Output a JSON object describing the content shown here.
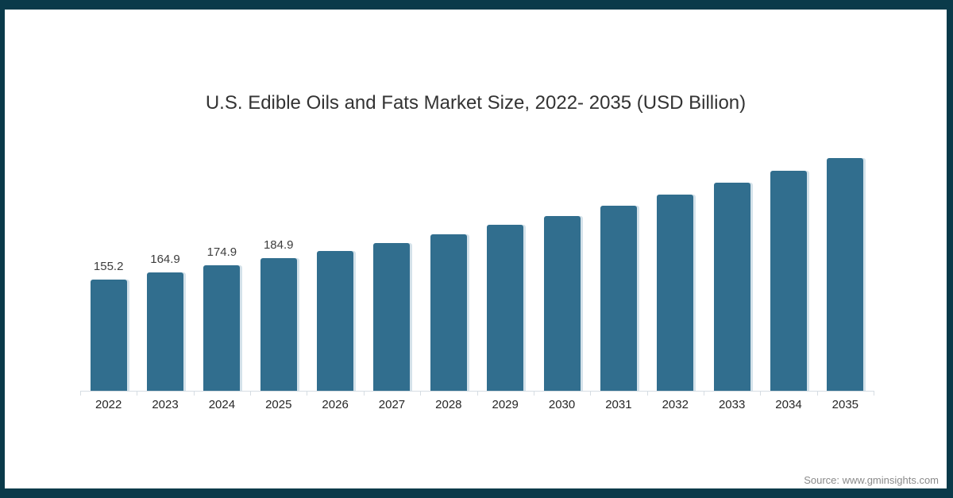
{
  "frame": {
    "border_color": "#0a3a4a",
    "background_color": "#ffffff"
  },
  "chart_data": {
    "type": "bar",
    "title": "U.S. Edible Oils and Fats Market Size, 2022- 2035 (USD Billion)",
    "xlabel": "",
    "ylabel": "",
    "categories": [
      "2022",
      "2023",
      "2024",
      "2025",
      "2026",
      "2027",
      "2028",
      "2029",
      "2030",
      "2031",
      "2032",
      "2033",
      "2034",
      "2035"
    ],
    "values": [
      155.2,
      164.9,
      174.9,
      184.9,
      195,
      206,
      218,
      231,
      244,
      258,
      274,
      290,
      307,
      324
    ],
    "data_labels": [
      "155.2",
      "164.9",
      "174.9",
      "184.9",
      "",
      "",
      "",
      "",
      "",
      "",
      "",
      "",
      "",
      ""
    ],
    "ylim": [
      0,
      350
    ],
    "grid": false,
    "legend": false,
    "y_axis_visible": false,
    "bar_color": "#316e8e",
    "bar_shadow_color": "#b0cbd9",
    "axis_color": "#d6dde3",
    "title_color": "#333333",
    "label_color": "#3d3d3d",
    "tick_label_color": "#262626"
  },
  "footer": {
    "source_label": "Source: www.gminsights.com"
  }
}
